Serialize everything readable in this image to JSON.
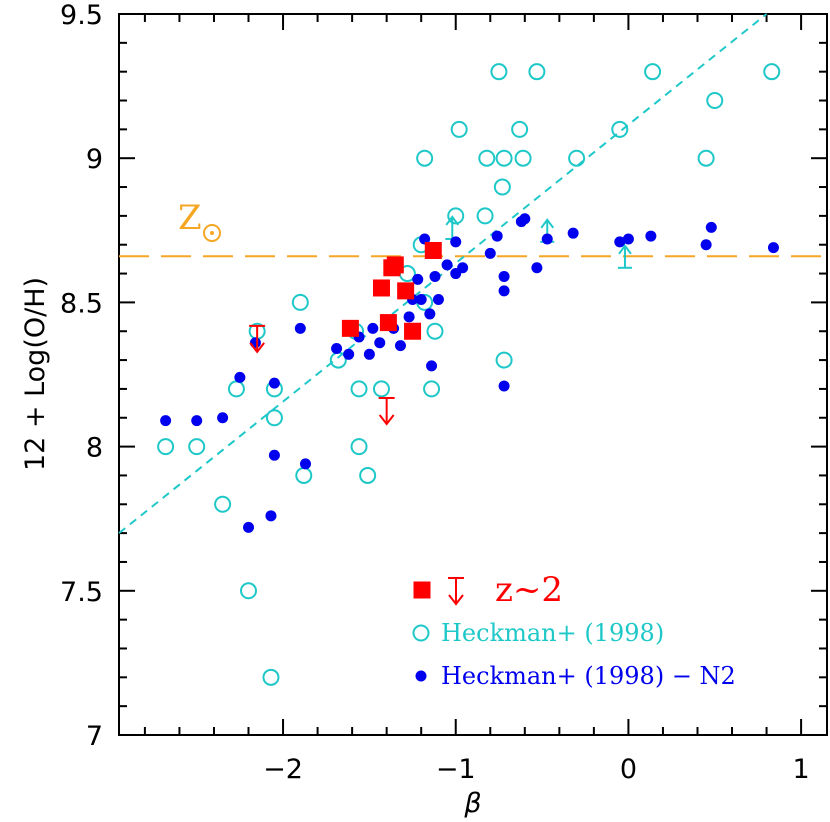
{
  "chart_data": {
    "type": "scatter",
    "xlabel": "β",
    "ylabel": "12 + Log(O/H)",
    "xlim": [
      -2.95,
      1.15
    ],
    "ylim": [
      7.0,
      9.5
    ],
    "x_ticks": [
      -2,
      -1,
      0,
      1
    ],
    "x_tick_labels": [
      "−2",
      "−1",
      "0",
      "1"
    ],
    "y_ticks": [
      7,
      7.5,
      8,
      8.5,
      9,
      9.5
    ],
    "y_tick_labels": [
      "7",
      "7.5",
      "8",
      "8.5",
      "9",
      "9.5"
    ],
    "grid": false,
    "legend_position": "bottom-right",
    "colors": {
      "z2": "#ff0000",
      "heckman": "#1fc8c8",
      "heckman_n2": "#0000ee",
      "solar": "#f5a623"
    },
    "solar_label": "Z",
    "solar_value": 8.66,
    "fit_line": {
      "x": [
        -2.95,
        0.8
      ],
      "y": [
        7.7,
        9.5
      ]
    },
    "series": [
      {
        "name": "z~2",
        "marker": "filled-square",
        "points": [
          [
            -1.13,
            8.68
          ],
          [
            -1.35,
            8.63
          ],
          [
            -1.37,
            8.62
          ],
          [
            -1.43,
            8.55
          ],
          [
            -1.29,
            8.54
          ],
          [
            -1.39,
            8.43
          ],
          [
            -1.25,
            8.4
          ],
          [
            -1.61,
            8.41
          ]
        ],
        "upper_limits": [
          [
            -2.15,
            8.37
          ],
          [
            -1.4,
            8.12
          ]
        ]
      },
      {
        "name": "Heckman+ (1998)",
        "marker": "open-circle",
        "points": [
          [
            -0.75,
            9.3
          ],
          [
            -0.53,
            9.3
          ],
          [
            0.14,
            9.3
          ],
          [
            0.83,
            9.3
          ],
          [
            0.5,
            9.2
          ],
          [
            -0.98,
            9.1
          ],
          [
            -0.63,
            9.1
          ],
          [
            -0.05,
            9.1
          ],
          [
            -1.18,
            9.0
          ],
          [
            -0.82,
            9.0
          ],
          [
            -0.72,
            9.0
          ],
          [
            -0.61,
            9.0
          ],
          [
            -0.3,
            9.0
          ],
          [
            0.45,
            9.0
          ],
          [
            -0.73,
            8.9
          ],
          [
            -1.0,
            8.8
          ],
          [
            -0.83,
            8.8
          ],
          [
            -1.2,
            8.7
          ],
          [
            -1.28,
            8.6
          ],
          [
            -1.9,
            8.5
          ],
          [
            -1.58,
            8.4
          ],
          [
            -1.18,
            8.5
          ],
          [
            -2.15,
            8.4
          ],
          [
            -1.12,
            8.4
          ],
          [
            -1.68,
            8.3
          ],
          [
            -0.72,
            8.3
          ],
          [
            -2.27,
            8.2
          ],
          [
            -2.05,
            8.2
          ],
          [
            -1.56,
            8.2
          ],
          [
            -1.43,
            8.2
          ],
          [
            -1.14,
            8.2
          ],
          [
            -2.05,
            8.1
          ],
          [
            -2.68,
            8.0
          ],
          [
            -2.5,
            8.0
          ],
          [
            -1.56,
            8.0
          ],
          [
            -1.88,
            7.9
          ],
          [
            -1.51,
            7.9
          ],
          [
            -2.35,
            7.8
          ],
          [
            -2.2,
            7.5
          ],
          [
            -2.07,
            7.2
          ]
        ],
        "lower_limits": [
          [
            -1.02,
            8.72
          ],
          [
            -0.47,
            8.71
          ],
          [
            -0.02,
            8.62
          ]
        ]
      },
      {
        "name": "Heckman+ (1998) − N2",
        "marker": "filled-circle",
        "points": [
          [
            -2.68,
            8.09
          ],
          [
            -2.5,
            8.09
          ],
          [
            -2.35,
            8.1
          ],
          [
            -2.25,
            8.24
          ],
          [
            -2.2,
            7.72
          ],
          [
            -2.16,
            8.36
          ],
          [
            -2.07,
            7.76
          ],
          [
            -2.05,
            8.22
          ],
          [
            -2.05,
            7.97
          ],
          [
            -1.9,
            8.41
          ],
          [
            -1.87,
            7.94
          ],
          [
            -1.69,
            8.34
          ],
          [
            -1.62,
            8.32
          ],
          [
            -1.56,
            8.38
          ],
          [
            -1.5,
            8.32
          ],
          [
            -1.48,
            8.41
          ],
          [
            -1.44,
            8.36
          ],
          [
            -1.36,
            8.41
          ],
          [
            -1.32,
            8.35
          ],
          [
            -1.27,
            8.45
          ],
          [
            -1.25,
            8.51
          ],
          [
            -1.22,
            8.58
          ],
          [
            -1.2,
            8.51
          ],
          [
            -1.18,
            8.72
          ],
          [
            -1.15,
            8.46
          ],
          [
            -1.14,
            8.28
          ],
          [
            -1.12,
            8.59
          ],
          [
            -1.1,
            8.51
          ],
          [
            -1.05,
            8.63
          ],
          [
            -1.0,
            8.71
          ],
          [
            -1.0,
            8.6
          ],
          [
            -0.96,
            8.62
          ],
          [
            -0.8,
            8.67
          ],
          [
            -0.76,
            8.73
          ],
          [
            -0.72,
            8.59
          ],
          [
            -0.72,
            8.54
          ],
          [
            -0.72,
            8.21
          ],
          [
            -0.62,
            8.78
          ],
          [
            -0.6,
            8.79
          ],
          [
            -0.53,
            8.62
          ],
          [
            -0.47,
            8.72
          ],
          [
            -0.32,
            8.74
          ],
          [
            -0.05,
            8.71
          ],
          [
            0.0,
            8.72
          ],
          [
            0.13,
            8.73
          ],
          [
            0.45,
            8.7
          ],
          [
            0.48,
            8.76
          ],
          [
            0.84,
            8.69
          ]
        ]
      }
    ]
  }
}
